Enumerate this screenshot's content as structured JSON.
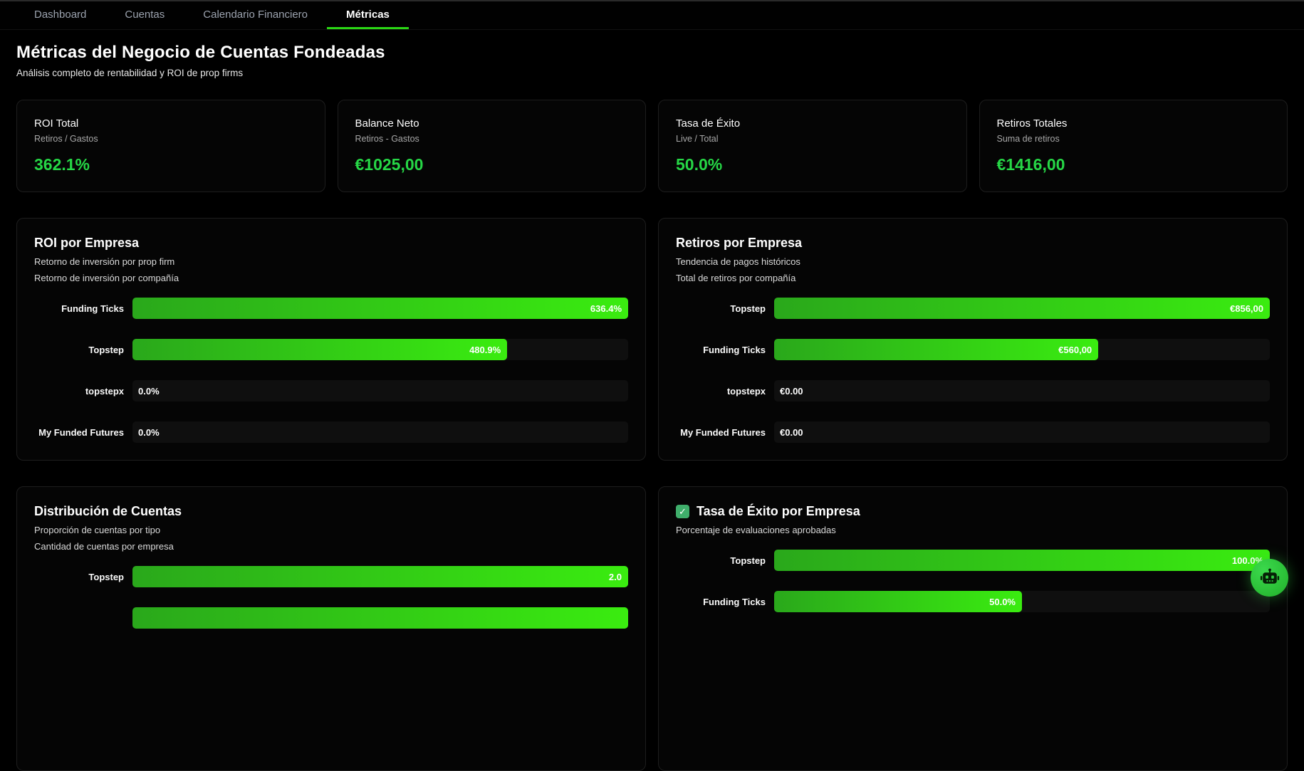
{
  "nav": {
    "tabs": [
      {
        "label": "Dashboard",
        "active": false
      },
      {
        "label": "Cuentas",
        "active": false
      },
      {
        "label": "Calendario Financiero",
        "active": false
      },
      {
        "label": "Métricas",
        "active": true
      }
    ]
  },
  "header": {
    "title": "Métricas del Negocio de Cuentas Fondeadas",
    "subtitle": "Análisis completo de rentabilidad y ROI de prop firms"
  },
  "stat_cards": [
    {
      "title": "ROI Total",
      "subtitle": "Retiros / Gastos",
      "value": "362.1%"
    },
    {
      "title": "Balance Neto",
      "subtitle": "Retiros - Gastos",
      "value": "€1025,00"
    },
    {
      "title": "Tasa de Éxito",
      "subtitle": "Live / Total",
      "value": "50.0%"
    },
    {
      "title": "Retiros Totales",
      "subtitle": "Suma de retiros",
      "value": "€1416,00"
    }
  ],
  "panels": [
    {
      "title": "ROI por Empresa",
      "title_icon": null,
      "subtitles": [
        "Retorno de inversión por prop firm",
        "Retorno de inversión por compañía"
      ],
      "rows": [
        {
          "label": "Funding Ticks",
          "display": "636.4%",
          "pct": 100
        },
        {
          "label": "Topstep",
          "display": "480.9%",
          "pct": 75.6
        },
        {
          "label": "topstepx",
          "display": "0.0%",
          "pct": 0
        },
        {
          "label": "My Funded Futures",
          "display": "0.0%",
          "pct": 0
        }
      ]
    },
    {
      "title": "Retiros por Empresa",
      "title_icon": null,
      "subtitles": [
        "Tendencia de pagos históricos",
        "Total de retiros por compañía"
      ],
      "rows": [
        {
          "label": "Topstep",
          "display": "€856,00",
          "pct": 100
        },
        {
          "label": "Funding Ticks",
          "display": "€560,00",
          "pct": 65.4
        },
        {
          "label": "topstepx",
          "display": "€0.00",
          "pct": 0
        },
        {
          "label": "My Funded Futures",
          "display": "€0.00",
          "pct": 0
        }
      ]
    },
    {
      "title": "Distribución de Cuentas",
      "title_icon": null,
      "subtitles": [
        "Proporción de cuentas por tipo",
        "Cantidad de cuentas por empresa"
      ],
      "rows": [
        {
          "label": "Topstep",
          "display": "2.0",
          "pct": 100
        },
        {
          "label": "",
          "display": "",
          "pct": 100
        }
      ]
    },
    {
      "title": "Tasa de Éxito por Empresa",
      "title_icon": "checkbox-icon",
      "subtitles": [
        "Porcentaje de evaluaciones aprobadas"
      ],
      "rows": [
        {
          "label": "Topstep",
          "display": "100.0%",
          "pct": 100
        },
        {
          "label": "Funding Ticks",
          "display": "50.0%",
          "pct": 50
        }
      ]
    }
  ],
  "chart_data": [
    {
      "type": "bar",
      "orientation": "horizontal",
      "title": "ROI por Empresa",
      "categories": [
        "Funding Ticks",
        "Topstep",
        "topstepx",
        "My Funded Futures"
      ],
      "values": [
        636.4,
        480.9,
        0.0,
        0.0
      ],
      "value_labels": [
        "636.4%",
        "480.9%",
        "0.0%",
        "0.0%"
      ],
      "xlim": [
        0,
        636.4
      ],
      "grid": false,
      "legend": false
    },
    {
      "type": "bar",
      "orientation": "horizontal",
      "title": "Retiros por Empresa",
      "categories": [
        "Topstep",
        "Funding Ticks",
        "topstepx",
        "My Funded Futures"
      ],
      "values": [
        856.0,
        560.0,
        0.0,
        0.0
      ],
      "value_labels": [
        "€856,00",
        "€560,00",
        "€0.00",
        "€0.00"
      ],
      "xlim": [
        0,
        856
      ],
      "grid": false,
      "legend": false
    },
    {
      "type": "bar",
      "orientation": "horizontal",
      "title": "Distribución de Cuentas",
      "categories": [
        "Topstep"
      ],
      "values": [
        2.0
      ],
      "value_labels": [
        "2.0"
      ],
      "xlim": [
        0,
        2
      ],
      "grid": false,
      "legend": false,
      "note": "second bar partially visible at screenshot cutoff, value not shown"
    },
    {
      "type": "bar",
      "orientation": "horizontal",
      "title": "Tasa de Éxito por Empresa",
      "categories": [
        "Topstep",
        "Funding Ticks"
      ],
      "values": [
        100.0,
        50.0
      ],
      "value_labels": [
        "100.0%",
        "50.0%"
      ],
      "xlim": [
        0,
        100
      ],
      "grid": false,
      "legend": false
    }
  ],
  "fab": {
    "icon": "robot-icon"
  },
  "colors": {
    "accent": "#2bd615",
    "value_green": "#26d746",
    "bar_gradient_from": "#2aa81b",
    "bar_gradient_to": "#3aec10",
    "fab_green": "#2ecc40",
    "check_green": "#3fae6b",
    "tab_inactive": "#9ca3af",
    "background": "#000000",
    "panel_background": "#050505"
  }
}
